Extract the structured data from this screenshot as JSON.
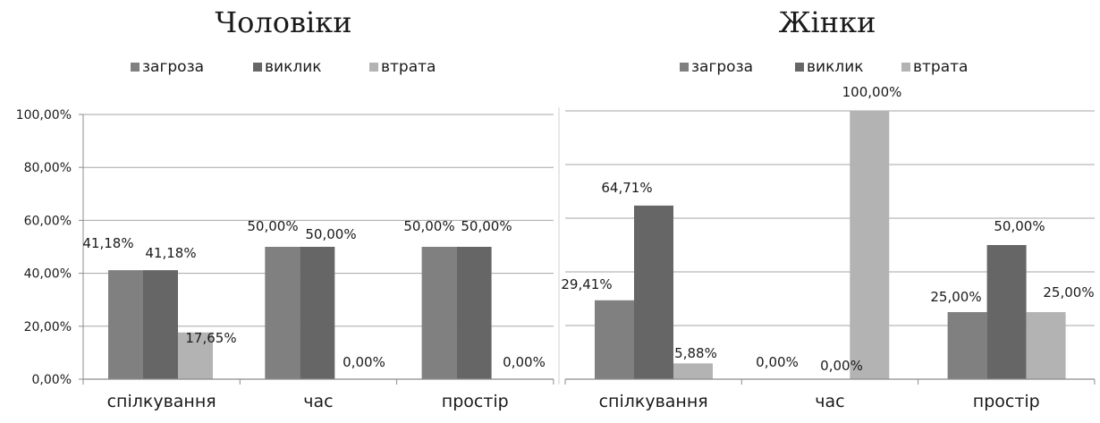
{
  "chart_data": [
    {
      "type": "bar",
      "title": "Чоловіки",
      "categories": [
        "спілкування",
        "час",
        "простір"
      ],
      "series": [
        {
          "name": "загроза",
          "values": [
            41.18,
            50.0,
            50.0
          ]
        },
        {
          "name": "виклик",
          "values": [
            41.18,
            50.0,
            50.0
          ]
        },
        {
          "name": "втрата",
          "values": [
            17.65,
            0.0,
            0.0
          ]
        }
      ],
      "data_labels": [
        [
          "41,18%",
          "50,00%",
          "50,00%"
        ],
        [
          "41,18%",
          "50,00%",
          "50,00%"
        ],
        [
          "17,65%",
          "0,00%",
          "0,00%"
        ]
      ],
      "yticks": [
        "0,00%",
        "20,00%",
        "40,00%",
        "60,00%",
        "80,00%",
        "100,00%"
      ],
      "ylim": [
        0,
        100
      ],
      "grid": true,
      "legend_position": "top"
    },
    {
      "type": "bar",
      "title": "Жінки",
      "categories": [
        "спілкування",
        "час",
        "простір"
      ],
      "series": [
        {
          "name": "загроза",
          "values": [
            29.41,
            0.0,
            25.0
          ]
        },
        {
          "name": "виклик",
          "values": [
            64.71,
            0.0,
            50.0
          ]
        },
        {
          "name": "втрата",
          "values": [
            5.88,
            100.0,
            25.0
          ]
        }
      ],
      "data_labels": [
        [
          "29,41%",
          "0,00%",
          "25,00%"
        ],
        [
          "64,71%",
          "0,00%",
          "50,00%"
        ],
        [
          "5,88%",
          "100,00%",
          "25,00%"
        ]
      ],
      "ylim": [
        0,
        100
      ],
      "grid": true,
      "legend_position": "top"
    }
  ],
  "colors": {
    "series": [
      "#808080",
      "#666666",
      "#b3b3b3"
    ],
    "grid": "#a6a6a6",
    "axis": "#8c8c8c"
  }
}
